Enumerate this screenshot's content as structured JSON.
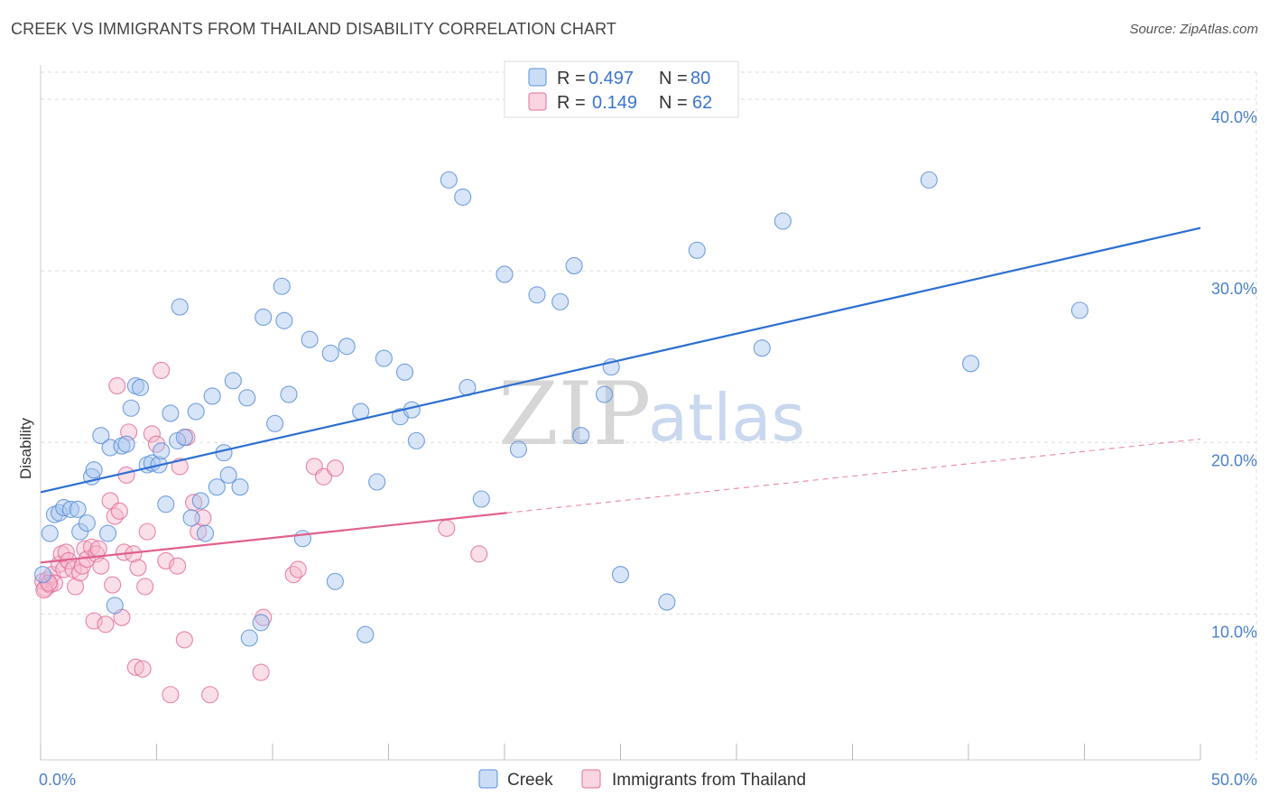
{
  "title": "CREEK VS IMMIGRANTS FROM THAILAND DISABILITY CORRELATION CHART",
  "source": "Source: ZipAtlas.com",
  "watermark": {
    "zip": "ZIP",
    "atlas": "atlas"
  },
  "colors": {
    "creek": "#5b8fd9",
    "creek_fill": "#a9c6f0",
    "thailand": "#e36f9b",
    "thailand_fill": "#f5b8cd",
    "creek_line": "#2d6fd0",
    "thailand_line": "#e0608f",
    "grid": "#dddddd",
    "tick_text": "#4a7fcc"
  },
  "legend": {
    "r_label": "R =",
    "n_label": "N =",
    "creek_r": "0.497",
    "creek_n": "80",
    "thailand_r": "0.149",
    "thailand_n": "62"
  },
  "chart_data": {
    "type": "scatter",
    "title": "CREEK VS IMMIGRANTS FROM THAILAND DISABILITY CORRELATION CHART",
    "xlabel": "",
    "ylabel": "Disability",
    "xlim": [
      0,
      50
    ],
    "ylim": [
      1.5,
      42
    ],
    "x_tick_labels": [
      "0.0%",
      "50.0%"
    ],
    "y_ticks": [
      10,
      20,
      30,
      40
    ],
    "y_tick_labels": [
      "10.0%",
      "20.0%",
      "30.0%",
      "40.0%"
    ],
    "grid": true,
    "legend_position": "top-center",
    "series": [
      {
        "name": "Creek",
        "r": 0.497,
        "n": 80,
        "trend": {
          "x": [
            0,
            50
          ],
          "y": [
            17.1,
            32.5
          ],
          "dashed_from": null
        },
        "points": [
          [
            0.1,
            12.3
          ],
          [
            0.4,
            14.7
          ],
          [
            0.6,
            15.8
          ],
          [
            0.8,
            15.9
          ],
          [
            1.0,
            16.2
          ],
          [
            1.3,
            16.1
          ],
          [
            1.6,
            16.1
          ],
          [
            1.7,
            14.8
          ],
          [
            2.0,
            15.3
          ],
          [
            2.2,
            18.0
          ],
          [
            2.3,
            18.4
          ],
          [
            2.6,
            20.4
          ],
          [
            2.9,
            14.7
          ],
          [
            3.0,
            19.7
          ],
          [
            3.2,
            10.5
          ],
          [
            3.5,
            19.8
          ],
          [
            3.7,
            19.9
          ],
          [
            3.9,
            22.0
          ],
          [
            4.1,
            23.3
          ],
          [
            4.3,
            23.2
          ],
          [
            4.6,
            18.7
          ],
          [
            4.8,
            18.8
          ],
          [
            5.1,
            18.7
          ],
          [
            5.2,
            19.5
          ],
          [
            5.4,
            16.4
          ],
          [
            5.6,
            21.7
          ],
          [
            5.9,
            20.1
          ],
          [
            6.0,
            27.9
          ],
          [
            6.2,
            20.3
          ],
          [
            6.5,
            15.6
          ],
          [
            6.7,
            21.8
          ],
          [
            6.9,
            16.6
          ],
          [
            7.1,
            14.7
          ],
          [
            7.4,
            22.7
          ],
          [
            7.6,
            17.4
          ],
          [
            7.9,
            19.4
          ],
          [
            8.1,
            18.1
          ],
          [
            8.3,
            23.6
          ],
          [
            8.6,
            17.4
          ],
          [
            8.9,
            22.6
          ],
          [
            9.0,
            8.6
          ],
          [
            9.5,
            9.5
          ],
          [
            9.6,
            27.3
          ],
          [
            10.1,
            21.1
          ],
          [
            10.4,
            29.1
          ],
          [
            10.5,
            27.1
          ],
          [
            10.7,
            22.8
          ],
          [
            11.3,
            14.4
          ],
          [
            11.6,
            26.0
          ],
          [
            12.5,
            25.2
          ],
          [
            12.7,
            11.9
          ],
          [
            13.2,
            25.6
          ],
          [
            13.8,
            21.8
          ],
          [
            14.0,
            8.8
          ],
          [
            14.5,
            17.7
          ],
          [
            14.8,
            24.9
          ],
          [
            15.5,
            21.5
          ],
          [
            15.7,
            24.1
          ],
          [
            16.0,
            21.9
          ],
          [
            16.2,
            20.1
          ],
          [
            17.6,
            35.3
          ],
          [
            18.2,
            34.3
          ],
          [
            18.4,
            23.2
          ],
          [
            19.0,
            16.7
          ],
          [
            20.0,
            29.8
          ],
          [
            20.6,
            19.6
          ],
          [
            21.4,
            28.6
          ],
          [
            22.4,
            28.2
          ],
          [
            23.0,
            30.3
          ],
          [
            23.3,
            20.4
          ],
          [
            24.3,
            22.8
          ],
          [
            24.6,
            24.4
          ],
          [
            25.0,
            12.3
          ],
          [
            27.0,
            10.7
          ],
          [
            28.3,
            31.2
          ],
          [
            31.1,
            25.5
          ],
          [
            32.0,
            32.9
          ],
          [
            38.3,
            35.3
          ],
          [
            40.1,
            24.6
          ],
          [
            44.8,
            27.7
          ]
        ]
      },
      {
        "name": "Immigrants from Thailand",
        "r": 0.149,
        "n": 62,
        "trend": {
          "x": [
            0,
            50
          ],
          "y": [
            13.0,
            20.2
          ],
          "dashed_from": 20.1
        },
        "points": [
          [
            0.1,
            11.9
          ],
          [
            0.2,
            11.5
          ],
          [
            0.3,
            12.0
          ],
          [
            0.4,
            11.7
          ],
          [
            0.5,
            12.3
          ],
          [
            0.6,
            11.8
          ],
          [
            0.8,
            12.9
          ],
          [
            0.9,
            13.5
          ],
          [
            1.0,
            12.6
          ],
          [
            1.1,
            13.6
          ],
          [
            1.2,
            13.1
          ],
          [
            1.4,
            12.6
          ],
          [
            1.5,
            11.6
          ],
          [
            1.7,
            12.4
          ],
          [
            1.8,
            12.8
          ],
          [
            1.9,
            13.8
          ],
          [
            2.0,
            13.2
          ],
          [
            2.2,
            13.9
          ],
          [
            2.3,
            9.6
          ],
          [
            2.4,
            13.5
          ],
          [
            2.5,
            13.8
          ],
          [
            2.6,
            12.8
          ],
          [
            2.8,
            9.4
          ],
          [
            3.0,
            16.6
          ],
          [
            3.1,
            11.7
          ],
          [
            3.2,
            15.7
          ],
          [
            3.3,
            23.3
          ],
          [
            3.4,
            16.0
          ],
          [
            3.5,
            9.8
          ],
          [
            3.6,
            13.6
          ],
          [
            3.7,
            18.1
          ],
          [
            3.8,
            20.6
          ],
          [
            4.0,
            13.5
          ],
          [
            4.1,
            6.9
          ],
          [
            4.2,
            12.7
          ],
          [
            4.4,
            6.8
          ],
          [
            4.5,
            11.6
          ],
          [
            4.6,
            14.8
          ],
          [
            4.8,
            20.5
          ],
          [
            5.0,
            19.9
          ],
          [
            5.2,
            24.2
          ],
          [
            5.4,
            13.1
          ],
          [
            5.6,
            5.3
          ],
          [
            5.9,
            12.8
          ],
          [
            6.0,
            18.6
          ],
          [
            6.2,
            8.5
          ],
          [
            6.3,
            20.3
          ],
          [
            6.6,
            16.5
          ],
          [
            6.8,
            14.8
          ],
          [
            7.0,
            15.6
          ],
          [
            7.3,
            5.3
          ],
          [
            9.5,
            6.6
          ],
          [
            9.6,
            9.8
          ],
          [
            10.9,
            12.3
          ],
          [
            11.1,
            12.6
          ],
          [
            11.8,
            18.6
          ],
          [
            12.2,
            18.0
          ],
          [
            12.7,
            18.5
          ],
          [
            17.5,
            15.0
          ],
          [
            18.9,
            13.5
          ],
          [
            0.15,
            11.4
          ],
          [
            0.35,
            11.8
          ]
        ]
      }
    ]
  },
  "bottom_legend": {
    "creek": "Creek",
    "thailand": "Immigrants from Thailand"
  }
}
